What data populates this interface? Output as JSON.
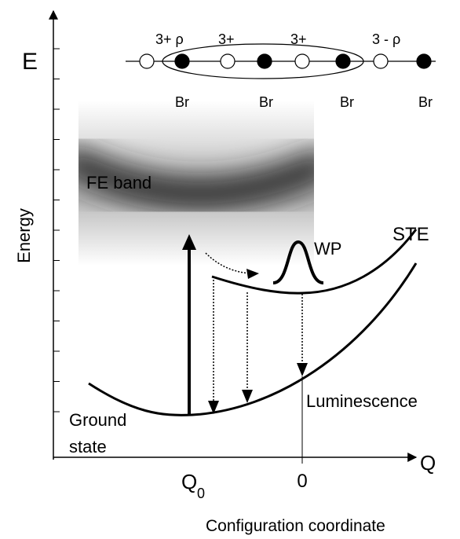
{
  "axes": {
    "y_symbol": "E",
    "y_label": "Energy",
    "x_symbol": "Q",
    "x_label": "Configuration coordinate",
    "q0": {
      "main": "Q",
      "sub": "0"
    },
    "origin": "0"
  },
  "chain": {
    "charges": [
      "3+ ρ",
      "3+",
      "3+",
      "3 - ρ"
    ],
    "atoms": [
      "Br",
      "Br",
      "Br",
      "Br"
    ]
  },
  "labels": {
    "fe_band": "FE band",
    "wp": "WP",
    "ste": "STE",
    "luminescence": "Luminescence",
    "ground_state": [
      "Ground",
      "state"
    ]
  }
}
